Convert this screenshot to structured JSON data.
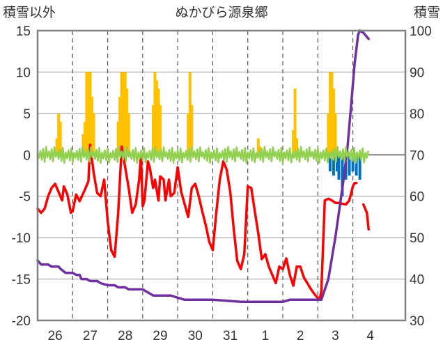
{
  "chart_data": {
    "type": "line",
    "title": "ぬかびら源泉郷",
    "ylabel_left": "積雪以外",
    "ylabel_right": "積雪",
    "ylim_left": [
      -20,
      15
    ],
    "yticks_left": [
      "15",
      "10",
      "5",
      "0",
      "-5",
      "-10",
      "-15",
      "-20"
    ],
    "ylim_right": [
      30,
      100
    ],
    "yticks_right": [
      "100",
      "90",
      "80",
      "70",
      "60",
      "50",
      "40",
      "30"
    ],
    "xlim": [
      0,
      10.5
    ],
    "categories": [
      "26",
      "27",
      "28",
      "29",
      "30",
      "31",
      "1",
      "2",
      "3",
      "4"
    ],
    "grid": true,
    "colors": {
      "temperature": "#ff0000",
      "snow_depth": "#7030a0",
      "wind": "#92d050",
      "precipitation": "#ffc000",
      "snow_change": "#0070c0"
    },
    "series": [
      {
        "key": "temperature",
        "axis": "left",
        "kind": "line",
        "points": [
          [
            0.0,
            -6.5
          ],
          [
            0.1,
            -7.0
          ],
          [
            0.2,
            -6.5
          ],
          [
            0.3,
            -5.0
          ],
          [
            0.4,
            -4.0
          ],
          [
            0.5,
            -3.5
          ],
          [
            0.6,
            -4.5
          ],
          [
            0.7,
            -5.5
          ],
          [
            0.75,
            -3.8
          ],
          [
            0.85,
            -4.8
          ],
          [
            0.95,
            -7.0
          ],
          [
            1.0,
            -6.8
          ],
          [
            1.1,
            -4.8
          ],
          [
            1.2,
            -5.6
          ],
          [
            1.35,
            -4.2
          ],
          [
            1.45,
            -3.2
          ],
          [
            1.5,
            1.2
          ],
          [
            1.6,
            -2.2
          ],
          [
            1.7,
            -4.6
          ],
          [
            1.8,
            -5.0
          ],
          [
            1.9,
            -3.0
          ],
          [
            2.0,
            -8.0
          ],
          [
            2.1,
            -11.5
          ],
          [
            2.2,
            -12.3
          ],
          [
            2.3,
            -7.0
          ],
          [
            2.4,
            1.0
          ],
          [
            2.5,
            -1.5
          ],
          [
            2.6,
            -4.0
          ],
          [
            2.7,
            -7.0
          ],
          [
            2.8,
            -6.0
          ],
          [
            2.9,
            -3.0
          ],
          [
            2.95,
            0.0
          ],
          [
            3.0,
            -6.2
          ],
          [
            3.05,
            -5.5
          ],
          [
            3.15,
            -0.8
          ],
          [
            3.2,
            -1.5
          ],
          [
            3.3,
            -4.0
          ],
          [
            3.35,
            -3.0
          ],
          [
            3.45,
            -5.5
          ],
          [
            3.5,
            -2.6
          ],
          [
            3.6,
            -3.0
          ],
          [
            3.65,
            -5.5
          ],
          [
            3.75,
            -3.0
          ],
          [
            3.8,
            -5.0
          ],
          [
            3.9,
            -4.6
          ],
          [
            4.0,
            -1.5
          ],
          [
            4.1,
            -4.5
          ],
          [
            4.2,
            -6.0
          ],
          [
            4.3,
            -7.5
          ],
          [
            4.4,
            -4.0
          ],
          [
            4.5,
            -3.5
          ],
          [
            4.6,
            -5.0
          ],
          [
            4.7,
            -6.8
          ],
          [
            4.8,
            -8.5
          ],
          [
            4.9,
            -10.5
          ],
          [
            5.0,
            -11.5
          ],
          [
            5.1,
            -7.0
          ],
          [
            5.2,
            -3.0
          ],
          [
            5.3,
            -0.8
          ],
          [
            5.35,
            -1.3
          ],
          [
            5.4,
            -1.8
          ],
          [
            5.5,
            -4.5
          ],
          [
            5.6,
            -9.0
          ],
          [
            5.7,
            -12.8
          ],
          [
            5.8,
            -13.8
          ],
          [
            5.9,
            -12.0
          ],
          [
            5.95,
            -8.0
          ],
          [
            6.0,
            -3.8
          ],
          [
            6.1,
            -4.0
          ],
          [
            6.2,
            -6.8
          ],
          [
            6.3,
            -9.5
          ],
          [
            6.4,
            -12.6
          ],
          [
            6.5,
            -12.0
          ],
          [
            6.6,
            -13.5
          ],
          [
            6.7,
            -14.5
          ],
          [
            6.8,
            -15.5
          ],
          [
            6.9,
            -13.5
          ],
          [
            7.0,
            -13.8
          ],
          [
            7.1,
            -12.5
          ],
          [
            7.2,
            -14.5
          ],
          [
            7.3,
            -15.8
          ],
          [
            7.4,
            -13.5
          ],
          [
            7.5,
            -13.5
          ],
          [
            7.6,
            -14.8
          ],
          [
            7.7,
            -15.5
          ],
          [
            7.8,
            -16.2
          ],
          [
            7.9,
            -16.8
          ],
          [
            8.0,
            -17.3
          ],
          [
            8.05,
            -17.5
          ],
          [
            8.1,
            -16.5
          ],
          [
            8.2,
            -5.5
          ],
          [
            8.3,
            -5.3
          ],
          [
            8.4,
            -5.5
          ],
          [
            8.5,
            -5.8
          ],
          [
            8.6,
            -5.8
          ],
          [
            8.7,
            -5.9
          ],
          [
            8.8,
            -6.0
          ],
          [
            8.9,
            -5.5
          ],
          [
            9.0,
            -3.8
          ],
          [
            9.05,
            -3.4
          ],
          [
            9.1,
            -3.4
          ],
          [
            9.15,
            null
          ],
          [
            9.3,
            -6.0
          ],
          [
            9.35,
            -6.5
          ],
          [
            9.4,
            -7.0
          ],
          [
            9.45,
            -9.0
          ]
        ]
      },
      {
        "key": "snow_depth",
        "axis": "right",
        "kind": "line",
        "points": [
          [
            0.0,
            44.5
          ],
          [
            0.1,
            43.5
          ],
          [
            0.3,
            43.5
          ],
          [
            0.4,
            43.0
          ],
          [
            0.6,
            43.0
          ],
          [
            0.65,
            42.5
          ],
          [
            0.8,
            41.5
          ],
          [
            1.0,
            41.5
          ],
          [
            1.1,
            41.0
          ],
          [
            1.2,
            41.0
          ],
          [
            1.25,
            40.0
          ],
          [
            1.4,
            40.0
          ],
          [
            1.5,
            39.5
          ],
          [
            1.7,
            39.5
          ],
          [
            1.8,
            39.0
          ],
          [
            2.0,
            38.5
          ],
          [
            2.2,
            38.5
          ],
          [
            2.3,
            38.0
          ],
          [
            2.5,
            38.0
          ],
          [
            2.6,
            37.5
          ],
          [
            3.0,
            37.5
          ],
          [
            3.1,
            37.0
          ],
          [
            3.3,
            36.0
          ],
          [
            3.5,
            36.0
          ],
          [
            3.8,
            36.0
          ],
          [
            4.0,
            35.5
          ],
          [
            4.2,
            35.0
          ],
          [
            5.0,
            35.0
          ],
          [
            5.8,
            34.5
          ],
          [
            6.0,
            34.5
          ],
          [
            7.0,
            34.5
          ],
          [
            7.2,
            35.0
          ],
          [
            8.0,
            35.0
          ],
          [
            8.1,
            35.0
          ],
          [
            8.3,
            40.0
          ],
          [
            8.5,
            50.0
          ],
          [
            8.6,
            56.0
          ],
          [
            8.75,
            65.0
          ],
          [
            8.85,
            72.0
          ],
          [
            8.95,
            82.0
          ],
          [
            9.05,
            92.0
          ],
          [
            9.15,
            99.0
          ],
          [
            9.2,
            100.0
          ],
          [
            9.3,
            99.5
          ],
          [
            9.4,
            98.5
          ],
          [
            9.45,
            98.0
          ]
        ]
      },
      {
        "key": "wind",
        "axis": "left",
        "kind": "zigzag",
        "base": 0.0,
        "amplitude": 0.8,
        "points": [
          [
            0.0,
            0.0
          ],
          [
            9.45,
            0.0
          ]
        ]
      },
      {
        "key": "precipitation",
        "axis": "left",
        "kind": "bars",
        "bars": [
          [
            0.55,
            2.0
          ],
          [
            0.6,
            5.0
          ],
          [
            0.65,
            4.0
          ],
          [
            1.3,
            2.5
          ],
          [
            1.35,
            4.0
          ],
          [
            1.4,
            10.0
          ],
          [
            1.45,
            10.0
          ],
          [
            1.5,
            10.0
          ],
          [
            1.55,
            7.0
          ],
          [
            1.6,
            5.0
          ],
          [
            2.3,
            4.0
          ],
          [
            2.35,
            7.0
          ],
          [
            2.4,
            10.0
          ],
          [
            2.45,
            10.0
          ],
          [
            2.5,
            10.0
          ],
          [
            2.55,
            8.0
          ],
          [
            2.6,
            5.0
          ],
          [
            3.3,
            6.0
          ],
          [
            3.35,
            10.0
          ],
          [
            3.4,
            9.0
          ],
          [
            3.45,
            8.0
          ],
          [
            3.5,
            6.0
          ],
          [
            4.3,
            5.0
          ],
          [
            4.35,
            10.0
          ],
          [
            4.4,
            6.0
          ],
          [
            6.3,
            2.0
          ],
          [
            6.35,
            1.0
          ],
          [
            7.3,
            3.0
          ],
          [
            7.35,
            8.0
          ],
          [
            7.4,
            2.0
          ],
          [
            8.3,
            5.0
          ],
          [
            8.35,
            10.0
          ],
          [
            8.4,
            10.0
          ],
          [
            8.45,
            8.0
          ],
          [
            8.5,
            5.0
          ]
        ]
      },
      {
        "key": "snow_change",
        "axis": "left",
        "kind": "bars",
        "bars": [
          [
            8.35,
            -2.0
          ],
          [
            8.45,
            -2.5
          ],
          [
            8.55,
            -2.0
          ],
          [
            8.6,
            -3.0
          ],
          [
            8.7,
            -5.0
          ],
          [
            8.8,
            -3.0
          ],
          [
            8.9,
            -2.5
          ],
          [
            9.0,
            -2.0
          ],
          [
            9.1,
            -2.5
          ],
          [
            9.2,
            -3.0
          ]
        ]
      }
    ]
  }
}
